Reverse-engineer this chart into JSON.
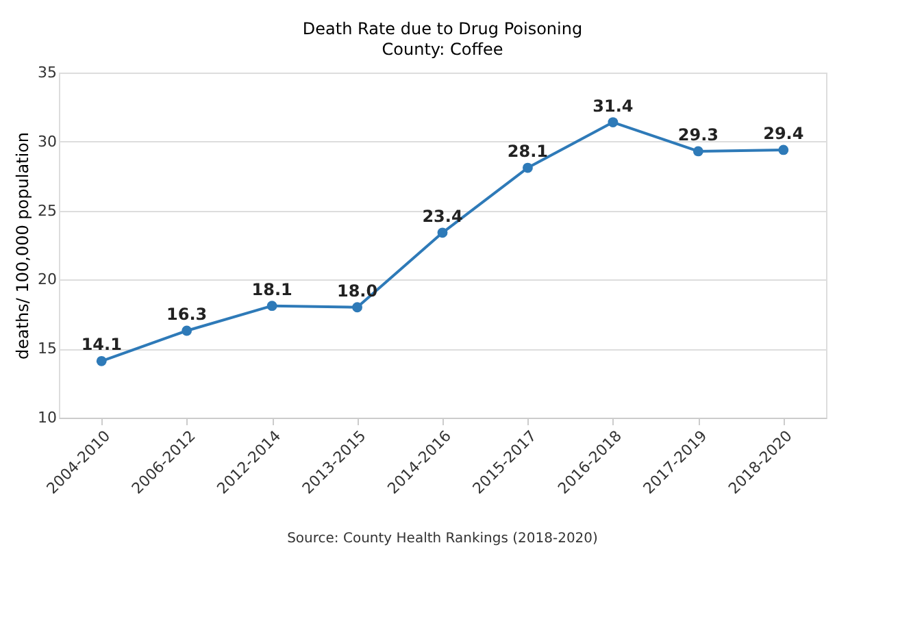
{
  "chart_data": {
    "type": "line",
    "title": "Death Rate due to Drug Poisoning",
    "subtitle": "County: Coffee",
    "ylabel": "deaths/ 100,000 population",
    "categories": [
      "2004-2010",
      "2006-2012",
      "2012-2014",
      "2013-2015",
      "2014-2016",
      "2015-2017",
      "2016-2018",
      "2017-2019",
      "2018-2020"
    ],
    "series": [
      {
        "color": "#2e7ab8",
        "values": [
          14.1,
          16.3,
          18.1,
          18.0,
          23.4,
          28.1,
          31.4,
          29.3,
          29.4
        ]
      }
    ],
    "value_labels": [
      "14.1",
      "16.3",
      "18.1",
      "18.0",
      "23.4",
      "28.1",
      "31.4",
      "29.3",
      "29.4"
    ],
    "ylim": [
      10,
      35
    ],
    "yticks": [
      10,
      15,
      20,
      25,
      30,
      35
    ],
    "grid": "y",
    "marker": "circle",
    "line_style": "solid",
    "annotations": [
      "Source: County Health Rankings (2018-2020)"
    ]
  }
}
